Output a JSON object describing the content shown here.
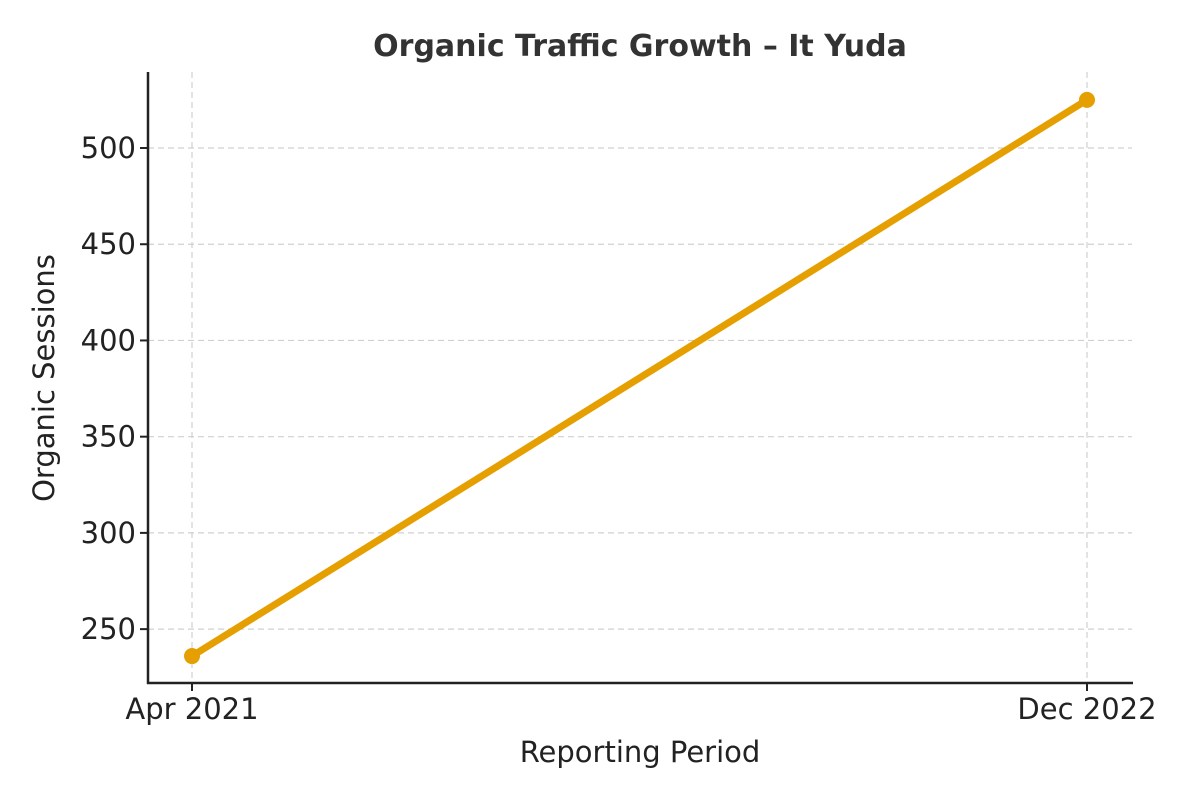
{
  "chart_data": {
    "type": "line",
    "title": "Organic Traffic Growth – It Yuda",
    "xlabel": "Reporting Period",
    "ylabel": "Organic Sessions",
    "categories": [
      "Apr 2021",
      "Dec 2022"
    ],
    "series": [
      {
        "values": [
          236,
          525
        ],
        "color": "#E69F00"
      }
    ],
    "yticks": [
      250,
      300,
      350,
      400,
      450,
      500
    ],
    "ylim": [
      222,
      539.5
    ],
    "grid": true,
    "marker": "circle"
  }
}
